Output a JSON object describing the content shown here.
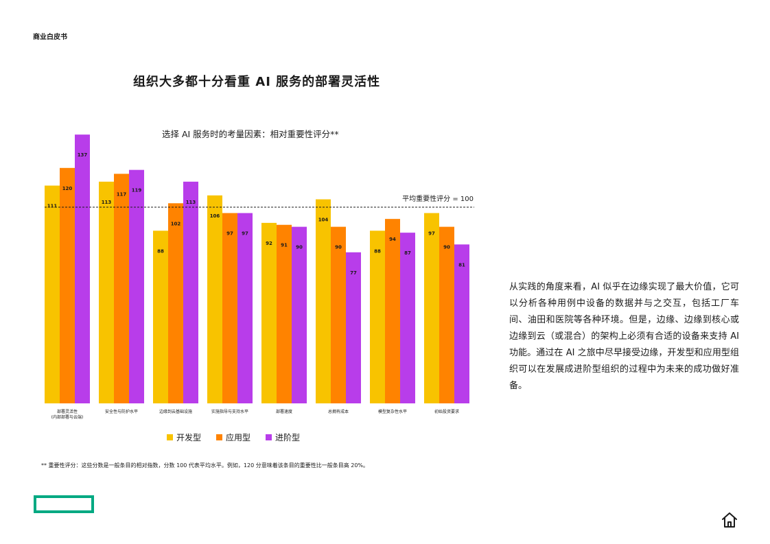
{
  "header": {
    "label": "商业白皮书"
  },
  "title": "组织大多都十分看重 AI 服务的部署灵活性",
  "chart_data": {
    "type": "bar",
    "title": "选择 AI 服务时的考量因素：相对重要性评分**",
    "categories": [
      [
        "部署灵活性",
        "(内部部署与云端)"
      ],
      [
        "安全性与防护水平"
      ],
      [
        "边缘到云基础设施"
      ],
      [
        "实施指导与支持水平"
      ],
      [
        "部署速度"
      ],
      [
        "总拥有成本"
      ],
      [
        "模型复杂性水平"
      ],
      [
        "初始投资要求"
      ]
    ],
    "series": [
      {
        "name": "开发型",
        "color": "#f8c300",
        "values": [
          111,
          113,
          88,
          106,
          92,
          104,
          88,
          97
        ]
      },
      {
        "name": "应用型",
        "color": "#ff8300",
        "values": [
          120,
          117,
          102,
          97,
          91,
          90,
          94,
          90
        ]
      },
      {
        "name": "进阶型",
        "color": "#b83dea",
        "values": [
          137,
          119,
          113,
          97,
          90,
          77,
          87,
          81
        ]
      }
    ],
    "reference_line": {
      "value": 100,
      "label": "平均重要性评分 = 100"
    },
    "legend_position": "bottom"
  },
  "footnote": "** 重要性评分：这些分数是一般条目的相对指数，分数 100 代表平均水平。例如，120 分意味着该条目的重要性比一般条目高 20%。",
  "side_text": "从实践的角度来看，AI 似乎在边缘实现了最大价值，它可以分析各种用例中设备的数据并与之交互，包括工厂车间、油田和医院等各种环境。但是，边缘、边缘到核心或边缘到云（或混合）的架构上必须有合适的设备来支持 AI 功能。通过在 AI 之旅中尽早接受边缘，开发型和应用型组织可以在发展成进阶型组织的过程中为未来的成功做好准备。",
  "colors": {
    "brand": "#01a982"
  },
  "icons": {
    "home": "home-icon",
    "logo": "brand-logo"
  }
}
